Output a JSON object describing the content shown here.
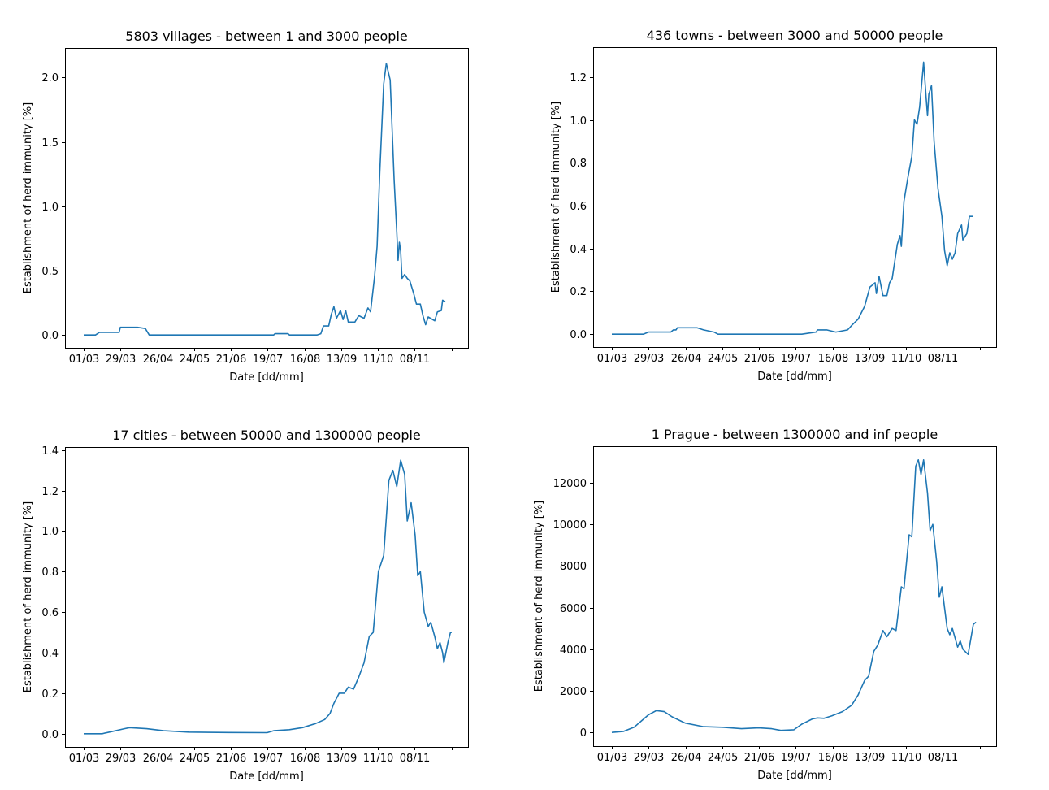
{
  "x_ticks": [
    "01/03",
    "29/03",
    "26/04",
    "24/05",
    "21/06",
    "19/07",
    "16/08",
    "13/09",
    "11/10",
    "08/11",
    ""
  ],
  "color": "#1f77b4",
  "chart_data": [
    {
      "type": "line",
      "title": "5803 villages - between 1 and 3000 people",
      "xlabel": "Date [dd/mm]",
      "ylabel": "Establishment of herd immunity [%]",
      "x_range": [
        "2020-03-01",
        "2020-12-07"
      ],
      "ylim": [
        -0.1,
        2.23
      ],
      "yticks": [
        0.0,
        0.5,
        1.0,
        1.5,
        2.0
      ],
      "ytick_labels": [
        "0.0",
        "0.5",
        "1.0",
        "1.5",
        "2.0"
      ],
      "grid": false,
      "points": [
        [
          "2020-03-01",
          0.0
        ],
        [
          "2020-03-10",
          0.0
        ],
        [
          "2020-03-13",
          0.02
        ],
        [
          "2020-03-28",
          0.02
        ],
        [
          "2020-03-29",
          0.06
        ],
        [
          "2020-04-11",
          0.06
        ],
        [
          "2020-04-17",
          0.05
        ],
        [
          "2020-04-20",
          0.0
        ],
        [
          "2020-07-24",
          0.0
        ],
        [
          "2020-07-25",
          0.01
        ],
        [
          "2020-08-04",
          0.01
        ],
        [
          "2020-08-05",
          0.0
        ],
        [
          "2020-08-26",
          0.0
        ],
        [
          "2020-08-29",
          0.01
        ],
        [
          "2020-08-31",
          0.07
        ],
        [
          "2020-09-04",
          0.07
        ],
        [
          "2020-09-06",
          0.16
        ],
        [
          "2020-09-08",
          0.22
        ],
        [
          "2020-09-10",
          0.13
        ],
        [
          "2020-09-13",
          0.19
        ],
        [
          "2020-09-15",
          0.12
        ],
        [
          "2020-09-17",
          0.19
        ],
        [
          "2020-09-19",
          0.1
        ],
        [
          "2020-09-24",
          0.1
        ],
        [
          "2020-09-27",
          0.15
        ],
        [
          "2020-10-01",
          0.13
        ],
        [
          "2020-10-04",
          0.21
        ],
        [
          "2020-10-06",
          0.18
        ],
        [
          "2020-10-09",
          0.45
        ],
        [
          "2020-10-11",
          0.69
        ],
        [
          "2020-10-13",
          1.25
        ],
        [
          "2020-10-16",
          1.95
        ],
        [
          "2020-10-18",
          2.11
        ],
        [
          "2020-10-21",
          1.98
        ],
        [
          "2020-10-24",
          1.2
        ],
        [
          "2020-10-26",
          0.8
        ],
        [
          "2020-10-27",
          0.58
        ],
        [
          "2020-10-28",
          0.72
        ],
        [
          "2020-10-29",
          0.65
        ],
        [
          "2020-10-30",
          0.44
        ],
        [
          "2020-11-01",
          0.47
        ],
        [
          "2020-11-03",
          0.44
        ],
        [
          "2020-11-05",
          0.42
        ],
        [
          "2020-11-08",
          0.32
        ],
        [
          "2020-11-10",
          0.24
        ],
        [
          "2020-11-13",
          0.24
        ],
        [
          "2020-11-15",
          0.15
        ],
        [
          "2020-11-17",
          0.08
        ],
        [
          "2020-11-19",
          0.14
        ],
        [
          "2020-11-24",
          0.11
        ],
        [
          "2020-11-26",
          0.18
        ],
        [
          "2020-11-29",
          0.19
        ],
        [
          "2020-11-30",
          0.27
        ],
        [
          "2020-12-02",
          0.26
        ]
      ]
    },
    {
      "type": "line",
      "title": "436 towns - between 3000 and 50000 people",
      "xlabel": "Date [dd/mm]",
      "ylabel": "Establishment of herd immunity [%]",
      "x_range": [
        "2020-03-01",
        "2020-12-07"
      ],
      "ylim": [
        -0.06,
        1.34
      ],
      "yticks": [
        0.0,
        0.2,
        0.4,
        0.6,
        0.8,
        1.0,
        1.2
      ],
      "ytick_labels": [
        "0.0",
        "0.2",
        "0.4",
        "0.6",
        "0.8",
        "1.0",
        "1.2"
      ],
      "grid": false,
      "points": [
        [
          "2020-03-01",
          0.0
        ],
        [
          "2020-03-25",
          0.0
        ],
        [
          "2020-03-29",
          0.01
        ],
        [
          "2020-04-15",
          0.01
        ],
        [
          "2020-04-17",
          0.02
        ],
        [
          "2020-04-19",
          0.02
        ],
        [
          "2020-04-20",
          0.03
        ],
        [
          "2020-05-05",
          0.03
        ],
        [
          "2020-05-10",
          0.02
        ],
        [
          "2020-05-18",
          0.01
        ],
        [
          "2020-05-21",
          0.0
        ],
        [
          "2020-07-24",
          0.0
        ],
        [
          "2020-08-04",
          0.01
        ],
        [
          "2020-08-05",
          0.02
        ],
        [
          "2020-08-12",
          0.02
        ],
        [
          "2020-08-19",
          0.01
        ],
        [
          "2020-08-28",
          0.02
        ],
        [
          "2020-08-31",
          0.04
        ],
        [
          "2020-09-05",
          0.07
        ],
        [
          "2020-09-10",
          0.13
        ],
        [
          "2020-09-14",
          0.22
        ],
        [
          "2020-09-18",
          0.24
        ],
        [
          "2020-09-19",
          0.19
        ],
        [
          "2020-09-21",
          0.27
        ],
        [
          "2020-09-24",
          0.18
        ],
        [
          "2020-09-27",
          0.18
        ],
        [
          "2020-09-29",
          0.24
        ],
        [
          "2020-10-01",
          0.26
        ],
        [
          "2020-10-05",
          0.42
        ],
        [
          "2020-10-07",
          0.46
        ],
        [
          "2020-10-08",
          0.41
        ],
        [
          "2020-10-10",
          0.62
        ],
        [
          "2020-10-13",
          0.73
        ],
        [
          "2020-10-16",
          0.83
        ],
        [
          "2020-10-18",
          1.0
        ],
        [
          "2020-10-20",
          0.98
        ],
        [
          "2020-10-22",
          1.06
        ],
        [
          "2020-10-25",
          1.27
        ],
        [
          "2020-10-27",
          1.1
        ],
        [
          "2020-10-28",
          1.02
        ],
        [
          "2020-10-29",
          1.12
        ],
        [
          "2020-10-31",
          1.16
        ],
        [
          "2020-11-02",
          0.9
        ],
        [
          "2020-11-05",
          0.68
        ],
        [
          "2020-11-08",
          0.55
        ],
        [
          "2020-11-10",
          0.39
        ],
        [
          "2020-11-12",
          0.32
        ],
        [
          "2020-11-14",
          0.38
        ],
        [
          "2020-11-16",
          0.35
        ],
        [
          "2020-11-18",
          0.38
        ],
        [
          "2020-11-20",
          0.47
        ],
        [
          "2020-11-23",
          0.51
        ],
        [
          "2020-11-24",
          0.44
        ],
        [
          "2020-11-27",
          0.47
        ],
        [
          "2020-11-29",
          0.55
        ],
        [
          "2020-12-02",
          0.55
        ]
      ]
    },
    {
      "type": "line",
      "title": "17 cities - between 50000 and 1300000 people",
      "xlabel": "Date [dd/mm]",
      "ylabel": "Establishment of herd immunity [%]",
      "x_range": [
        "2020-03-01",
        "2020-12-07"
      ],
      "ylim": [
        -0.065,
        1.415
      ],
      "yticks": [
        0.0,
        0.2,
        0.4,
        0.6,
        0.8,
        1.0,
        1.2,
        1.4
      ],
      "ytick_labels": [
        "0.0",
        "0.2",
        "0.4",
        "0.6",
        "0.8",
        "1.0",
        "1.2",
        "1.4"
      ],
      "grid": false,
      "points": [
        [
          "2020-03-01",
          0.0
        ],
        [
          "2020-03-15",
          0.0
        ],
        [
          "2020-03-22",
          0.01
        ],
        [
          "2020-04-01",
          0.025
        ],
        [
          "2020-04-05",
          0.03
        ],
        [
          "2020-04-18",
          0.025
        ],
        [
          "2020-05-01",
          0.015
        ],
        [
          "2020-05-20",
          0.008
        ],
        [
          "2020-06-20",
          0.006
        ],
        [
          "2020-07-19",
          0.005
        ],
        [
          "2020-07-24",
          0.015
        ],
        [
          "2020-08-05",
          0.02
        ],
        [
          "2020-08-15",
          0.03
        ],
        [
          "2020-08-25",
          0.05
        ],
        [
          "2020-09-01",
          0.07
        ],
        [
          "2020-09-05",
          0.1
        ],
        [
          "2020-09-08",
          0.15
        ],
        [
          "2020-09-12",
          0.2
        ],
        [
          "2020-09-16",
          0.2
        ],
        [
          "2020-09-19",
          0.23
        ],
        [
          "2020-09-23",
          0.22
        ],
        [
          "2020-09-27",
          0.28
        ],
        [
          "2020-10-01",
          0.35
        ],
        [
          "2020-10-05",
          0.48
        ],
        [
          "2020-10-08",
          0.5
        ],
        [
          "2020-10-12",
          0.8
        ],
        [
          "2020-10-16",
          0.88
        ],
        [
          "2020-10-20",
          1.25
        ],
        [
          "2020-10-23",
          1.3
        ],
        [
          "2020-10-26",
          1.22
        ],
        [
          "2020-10-29",
          1.35
        ],
        [
          "2020-11-01",
          1.28
        ],
        [
          "2020-11-03",
          1.05
        ],
        [
          "2020-11-06",
          1.14
        ],
        [
          "2020-11-09",
          0.98
        ],
        [
          "2020-11-11",
          0.78
        ],
        [
          "2020-11-13",
          0.8
        ],
        [
          "2020-11-16",
          0.6
        ],
        [
          "2020-11-19",
          0.53
        ],
        [
          "2020-11-21",
          0.55
        ],
        [
          "2020-11-24",
          0.48
        ],
        [
          "2020-11-26",
          0.42
        ],
        [
          "2020-11-28",
          0.45
        ],
        [
          "2020-11-30",
          0.4
        ],
        [
          "2020-12-01",
          0.35
        ],
        [
          "2020-12-04",
          0.45
        ],
        [
          "2020-12-06",
          0.5
        ],
        [
          "2020-12-07",
          0.5
        ]
      ]
    },
    {
      "type": "line",
      "title": "1 Prague - between 1300000 and inf people",
      "xlabel": "Date [dd/mm]",
      "ylabel": "Establishment of herd immunity [%]",
      "x_range": [
        "2020-03-01",
        "2020-12-07"
      ],
      "ylim": [
        -655,
        13755
      ],
      "yticks": [
        0,
        2000,
        4000,
        6000,
        8000,
        10000,
        12000
      ],
      "ytick_labels": [
        "0",
        "2000",
        "4000",
        "6000",
        "8000",
        "10000",
        "12000"
      ],
      "grid": false,
      "points": [
        [
          "2020-03-01",
          0
        ],
        [
          "2020-03-10",
          50
        ],
        [
          "2020-03-18",
          250
        ],
        [
          "2020-03-29",
          850
        ],
        [
          "2020-04-04",
          1050
        ],
        [
          "2020-04-10",
          1000
        ],
        [
          "2020-04-16",
          750
        ],
        [
          "2020-04-26",
          450
        ],
        [
          "2020-05-10",
          280
        ],
        [
          "2020-05-24",
          250
        ],
        [
          "2020-06-08",
          180
        ],
        [
          "2020-06-21",
          220
        ],
        [
          "2020-07-01",
          180
        ],
        [
          "2020-07-08",
          100
        ],
        [
          "2020-07-18",
          130
        ],
        [
          "2020-07-24",
          400
        ],
        [
          "2020-08-01",
          650
        ],
        [
          "2020-08-05",
          700
        ],
        [
          "2020-08-10",
          680
        ],
        [
          "2020-08-16",
          800
        ],
        [
          "2020-08-24",
          1000
        ],
        [
          "2020-08-31",
          1300
        ],
        [
          "2020-09-05",
          1800
        ],
        [
          "2020-09-10",
          2500
        ],
        [
          "2020-09-13",
          2700
        ],
        [
          "2020-09-17",
          3900
        ],
        [
          "2020-09-20",
          4200
        ],
        [
          "2020-09-24",
          4900
        ],
        [
          "2020-09-27",
          4600
        ],
        [
          "2020-10-01",
          5000
        ],
        [
          "2020-10-04",
          4900
        ],
        [
          "2020-10-08",
          7000
        ],
        [
          "2020-10-10",
          6900
        ],
        [
          "2020-10-14",
          9500
        ],
        [
          "2020-10-16",
          9400
        ],
        [
          "2020-10-19",
          12800
        ],
        [
          "2020-10-21",
          13100
        ],
        [
          "2020-10-23",
          12400
        ],
        [
          "2020-10-25",
          13100
        ],
        [
          "2020-10-28",
          11500
        ],
        [
          "2020-10-30",
          9700
        ],
        [
          "2020-11-01",
          10000
        ],
        [
          "2020-11-04",
          8200
        ],
        [
          "2020-11-06",
          6500
        ],
        [
          "2020-11-08",
          7000
        ],
        [
          "2020-11-12",
          5000
        ],
        [
          "2020-11-14",
          4700
        ],
        [
          "2020-11-16",
          5000
        ],
        [
          "2020-11-20",
          4100
        ],
        [
          "2020-11-22",
          4400
        ],
        [
          "2020-11-24",
          4000
        ],
        [
          "2020-11-28",
          3750
        ],
        [
          "2020-12-02",
          5200
        ],
        [
          "2020-12-04",
          5300
        ]
      ]
    }
  ]
}
